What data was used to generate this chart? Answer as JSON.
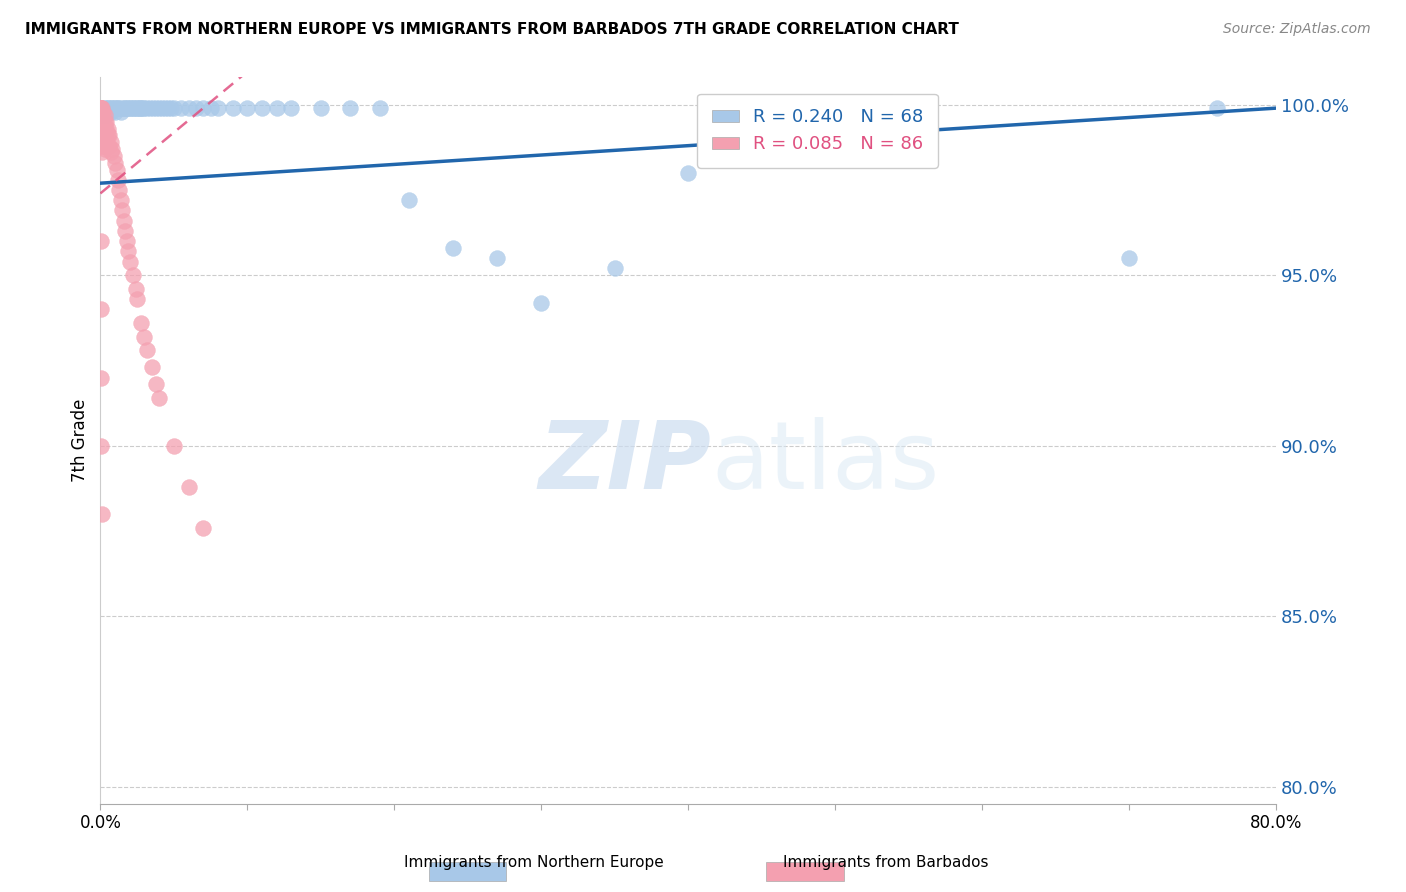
{
  "title": "IMMIGRANTS FROM NORTHERN EUROPE VS IMMIGRANTS FROM BARBADOS 7TH GRADE CORRELATION CHART",
  "source": "Source: ZipAtlas.com",
  "ylabel": "7th Grade",
  "xlim": [
    0.0,
    0.8
  ],
  "ylim": [
    0.795,
    1.008
  ],
  "ytick_values": [
    0.8,
    0.85,
    0.9,
    0.95,
    1.0
  ],
  "blue_R": 0.24,
  "blue_N": 68,
  "pink_R": 0.085,
  "pink_N": 86,
  "legend_label_blue": "Immigrants from Northern Europe",
  "legend_label_pink": "Immigrants from Barbados",
  "blue_color": "#a8c8e8",
  "pink_color": "#f4a0b0",
  "blue_line_color": "#2166ac",
  "pink_line_color": "#e05080",
  "watermark_zip": "ZIP",
  "watermark_atlas": "atlas",
  "blue_scatter_x": [
    0.001,
    0.002,
    0.003,
    0.003,
    0.004,
    0.004,
    0.005,
    0.005,
    0.006,
    0.006,
    0.007,
    0.007,
    0.008,
    0.009,
    0.01,
    0.01,
    0.011,
    0.012,
    0.013,
    0.014,
    0.015,
    0.016,
    0.017,
    0.018,
    0.019,
    0.02,
    0.021,
    0.022,
    0.023,
    0.024,
    0.025,
    0.026,
    0.027,
    0.028,
    0.029,
    0.03,
    0.032,
    0.034,
    0.036,
    0.038,
    0.04,
    0.042,
    0.044,
    0.046,
    0.048,
    0.05,
    0.055,
    0.06,
    0.065,
    0.07,
    0.075,
    0.08,
    0.09,
    0.1,
    0.11,
    0.12,
    0.13,
    0.15,
    0.17,
    0.19,
    0.21,
    0.24,
    0.27,
    0.3,
    0.35,
    0.4,
    0.55,
    0.7,
    0.76
  ],
  "blue_scatter_y": [
    0.998,
    0.997,
    0.999,
    0.998,
    0.999,
    0.997,
    0.999,
    0.998,
    0.999,
    0.998,
    0.999,
    0.998,
    0.999,
    0.999,
    0.998,
    0.999,
    0.999,
    0.999,
    0.999,
    0.998,
    0.999,
    0.999,
    0.999,
    0.999,
    0.999,
    0.999,
    0.999,
    0.999,
    0.999,
    0.999,
    0.999,
    0.999,
    0.999,
    0.999,
    0.999,
    0.999,
    0.999,
    0.999,
    0.999,
    0.999,
    0.999,
    0.999,
    0.999,
    0.999,
    0.999,
    0.999,
    0.999,
    0.999,
    0.999,
    0.999,
    0.999,
    0.999,
    0.999,
    0.999,
    0.999,
    0.999,
    0.999,
    0.999,
    0.999,
    0.999,
    0.972,
    0.958,
    0.955,
    0.942,
    0.952,
    0.98,
    0.999,
    0.955,
    0.999
  ],
  "pink_scatter_x": [
    0.0001,
    0.0001,
    0.0001,
    0.0002,
    0.0002,
    0.0002,
    0.0003,
    0.0003,
    0.0003,
    0.0004,
    0.0004,
    0.0005,
    0.0005,
    0.0006,
    0.0006,
    0.0007,
    0.0007,
    0.0008,
    0.0009,
    0.001,
    0.001,
    0.001,
    0.001,
    0.001,
    0.001,
    0.001,
    0.001,
    0.001,
    0.001,
    0.001,
    0.001,
    0.001,
    0.002,
    0.002,
    0.002,
    0.002,
    0.002,
    0.002,
    0.003,
    0.003,
    0.003,
    0.003,
    0.003,
    0.003,
    0.004,
    0.004,
    0.004,
    0.005,
    0.005,
    0.005,
    0.006,
    0.006,
    0.007,
    0.007,
    0.008,
    0.009,
    0.01,
    0.011,
    0.012,
    0.013,
    0.014,
    0.015,
    0.016,
    0.017,
    0.018,
    0.019,
    0.02,
    0.022,
    0.024,
    0.025,
    0.028,
    0.03,
    0.032,
    0.035,
    0.038,
    0.04,
    0.05,
    0.06,
    0.07,
    0.0005,
    0.0005,
    0.0006,
    0.0007,
    0.0008
  ],
  "pink_scatter_y": [
    0.999,
    0.998,
    0.997,
    0.999,
    0.998,
    0.997,
    0.999,
    0.998,
    0.996,
    0.999,
    0.997,
    0.999,
    0.997,
    0.998,
    0.996,
    0.998,
    0.995,
    0.997,
    0.996,
    0.999,
    0.998,
    0.997,
    0.996,
    0.995,
    0.994,
    0.993,
    0.992,
    0.991,
    0.99,
    0.989,
    0.988,
    0.986,
    0.998,
    0.996,
    0.994,
    0.992,
    0.99,
    0.988,
    0.997,
    0.995,
    0.993,
    0.991,
    0.989,
    0.987,
    0.995,
    0.993,
    0.99,
    0.993,
    0.991,
    0.988,
    0.991,
    0.988,
    0.989,
    0.986,
    0.987,
    0.985,
    0.983,
    0.981,
    0.978,
    0.975,
    0.972,
    0.969,
    0.966,
    0.963,
    0.96,
    0.957,
    0.954,
    0.95,
    0.946,
    0.943,
    0.936,
    0.932,
    0.928,
    0.923,
    0.918,
    0.914,
    0.9,
    0.888,
    0.876,
    0.96,
    0.94,
    0.92,
    0.9,
    0.88
  ]
}
